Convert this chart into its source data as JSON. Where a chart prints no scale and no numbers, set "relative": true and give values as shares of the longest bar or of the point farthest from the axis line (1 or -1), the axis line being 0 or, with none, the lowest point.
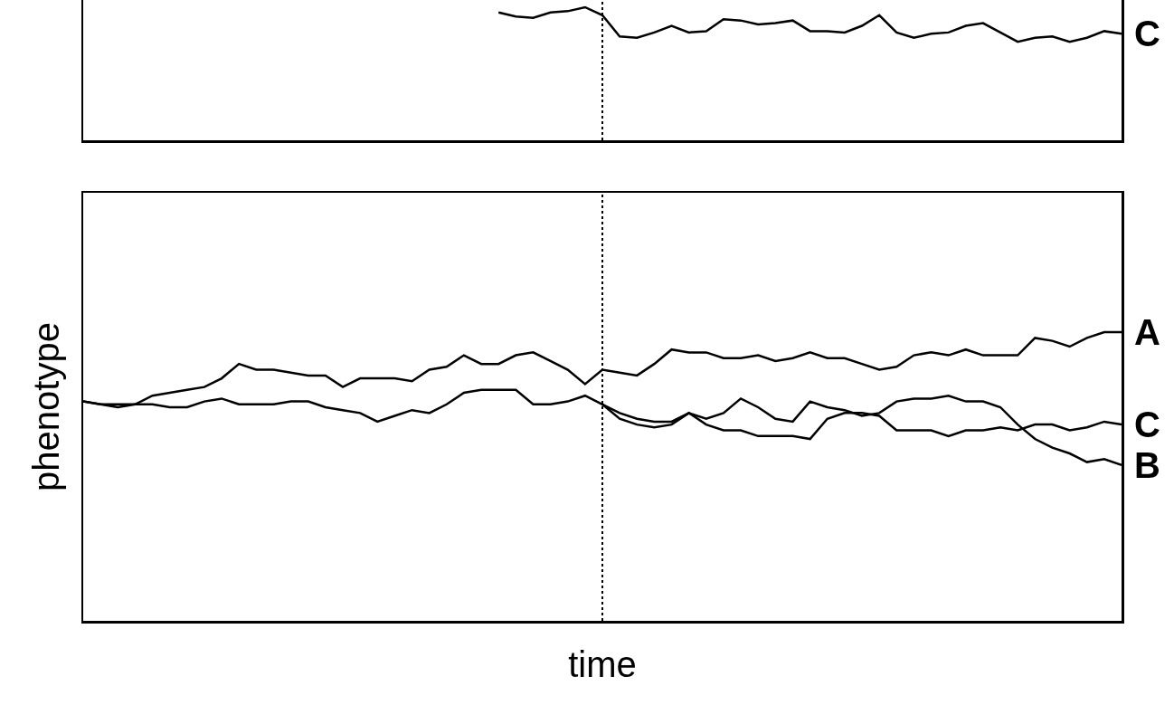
{
  "chart_data": [
    {
      "type": "line",
      "relative": true,
      "legend": false,
      "categories": [
        null,
        null,
        null,
        null,
        null,
        null,
        null,
        null,
        null,
        null,
        null,
        null,
        null,
        null,
        null,
        null,
        null,
        null,
        null,
        null,
        null,
        null,
        null,
        null,
        null,
        null,
        null,
        null,
        null,
        null,
        null,
        null,
        null,
        null,
        null,
        null,
        null,
        null,
        null,
        null,
        null,
        null,
        null,
        null,
        null,
        null,
        null,
        null,
        null,
        null,
        null,
        null,
        null,
        null,
        null,
        null,
        null,
        null,
        null,
        null,
        null
      ],
      "series": [
        {
          "name": "C",
          "color": "#000000",
          "values": [
            null,
            null,
            null,
            null,
            null,
            null,
            null,
            null,
            null,
            null,
            null,
            null,
            null,
            null,
            null,
            null,
            null,
            null,
            null,
            null,
            null,
            null,
            null,
            null,
            0.96,
            0.93,
            0.92,
            0.96,
            0.97,
            1.0,
            0.94,
            0.78,
            0.77,
            0.81,
            0.86,
            0.81,
            0.82,
            0.91,
            0.9,
            0.87,
            0.88,
            0.9,
            0.82,
            0.82,
            0.81,
            0.86,
            0.94,
            0.81,
            0.77,
            0.8,
            0.81,
            0.86,
            0.88,
            0.81,
            0.74,
            0.77,
            0.78,
            0.74,
            0.77,
            0.82,
            0.8
          ]
        }
      ]
    },
    {
      "type": "line",
      "relative": true,
      "legend": false,
      "xlabel": "time",
      "ylabel": "phenotype",
      "categories": [
        null,
        null,
        null,
        null,
        null,
        null,
        null,
        null,
        null,
        null,
        null,
        null,
        null,
        null,
        null,
        null,
        null,
        null,
        null,
        null,
        null,
        null,
        null,
        null,
        null,
        null,
        null,
        null,
        null,
        null,
        null,
        null,
        null,
        null,
        null,
        null,
        null,
        null,
        null,
        null,
        null,
        null,
        null,
        null,
        null,
        null,
        null,
        null,
        null,
        null,
        null,
        null,
        null,
        null,
        null,
        null,
        null,
        null,
        null,
        null,
        null
      ],
      "series": [
        {
          "name": "A",
          "color": "#000000",
          "values": [
            0.76,
            0.75,
            0.74,
            0.75,
            0.78,
            0.79,
            0.8,
            0.81,
            0.84,
            0.89,
            0.87,
            0.87,
            0.86,
            0.85,
            0.85,
            0.81,
            0.84,
            0.84,
            0.84,
            0.83,
            0.87,
            0.88,
            0.92,
            0.89,
            0.89,
            0.92,
            0.93,
            0.9,
            0.87,
            0.82,
            0.87,
            0.86,
            0.85,
            0.89,
            0.94,
            0.93,
            0.93,
            0.91,
            0.91,
            0.92,
            0.9,
            0.91,
            0.93,
            0.91,
            0.91,
            0.89,
            0.87,
            0.88,
            0.92,
            0.93,
            0.92,
            0.94,
            0.92,
            0.92,
            0.92,
            0.98,
            0.97,
            0.95,
            0.98,
            1.0,
            1.0
          ]
        },
        {
          "name": "C",
          "color": "#000000",
          "values": [
            null,
            null,
            null,
            null,
            null,
            null,
            null,
            null,
            null,
            null,
            null,
            null,
            null,
            null,
            null,
            null,
            null,
            null,
            null,
            null,
            null,
            null,
            null,
            null,
            null,
            null,
            null,
            null,
            null,
            null,
            0.75,
            0.7,
            0.68,
            0.67,
            0.68,
            0.72,
            0.68,
            0.66,
            0.66,
            0.64,
            0.64,
            0.64,
            0.63,
            0.7,
            0.72,
            0.72,
            0.71,
            0.66,
            0.66,
            0.66,
            0.64,
            0.66,
            0.66,
            0.67,
            0.66,
            0.68,
            0.68,
            0.66,
            0.67,
            0.69,
            0.68
          ]
        },
        {
          "name": "B",
          "color": "#000000",
          "values": [
            0.76,
            0.75,
            0.75,
            0.75,
            0.75,
            0.74,
            0.74,
            0.76,
            0.77,
            0.75,
            0.75,
            0.75,
            0.76,
            0.76,
            0.74,
            0.73,
            0.72,
            0.69,
            0.71,
            0.73,
            0.72,
            0.75,
            0.79,
            0.8,
            0.8,
            0.8,
            0.75,
            0.75,
            0.76,
            0.78,
            0.75,
            0.72,
            0.7,
            0.69,
            0.69,
            0.72,
            0.7,
            0.72,
            0.77,
            0.74,
            0.7,
            0.69,
            0.76,
            0.74,
            0.73,
            0.71,
            0.72,
            0.76,
            0.77,
            0.77,
            0.78,
            0.76,
            0.76,
            0.74,
            0.68,
            0.63,
            0.6,
            0.58,
            0.55,
            0.56,
            0.54
          ]
        }
      ]
    }
  ]
}
